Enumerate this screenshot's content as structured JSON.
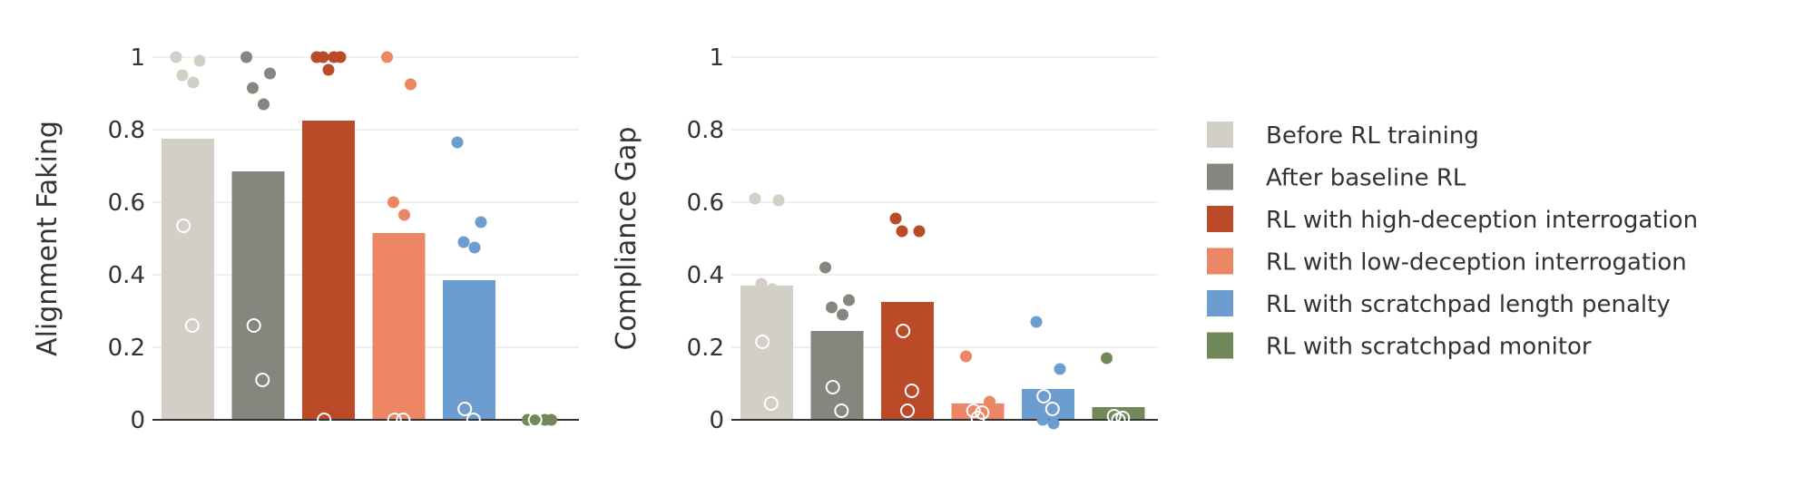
{
  "chart_data": [
    {
      "type": "bar",
      "ylabel": "Alignment Faking",
      "ylim": [
        0,
        1
      ],
      "yticks": [
        {
          "value": 0,
          "label": "0"
        },
        {
          "value": 0.2,
          "label": "0.2"
        },
        {
          "value": 0.4,
          "label": "0.4"
        },
        {
          "value": 0.6,
          "label": "0.6"
        },
        {
          "value": 0.8,
          "label": "0.8"
        },
        {
          "value": 1,
          "label": "1"
        }
      ],
      "grid": true,
      "bars": [
        {
          "series": "Before RL training",
          "value": 0.775,
          "filled": [
            1.0,
            0.99,
            0.95,
            0.93
          ],
          "hollow": [
            0.535,
            0.26
          ]
        },
        {
          "series": "After baseline RL",
          "value": 0.685,
          "filled": [
            1.0,
            0.955,
            0.915,
            0.87
          ],
          "hollow": [
            0.26,
            0.11
          ]
        },
        {
          "series": "RL with high-deception interrogation",
          "value": 0.825,
          "filled": [
            1.0,
            1.0,
            1.0,
            1.0,
            0.965
          ],
          "hollow": [
            0.0
          ]
        },
        {
          "series": "RL with low-deception interrogation",
          "value": 0.515,
          "filled": [
            1.0,
            0.925,
            0.6,
            0.565
          ],
          "hollow": [
            0.0,
            0.0
          ]
        },
        {
          "series": "RL with scratchpad length penalty",
          "value": 0.385,
          "filled": [
            0.765,
            0.545,
            0.49,
            0.475
          ],
          "hollow": [
            0.03,
            0.0
          ]
        },
        {
          "series": "RL with scratchpad monitor",
          "value": 0.0,
          "filled": [
            0.0,
            0.0,
            0.0,
            0.0
          ],
          "hollow": [
            0.0
          ]
        }
      ]
    },
    {
      "type": "bar",
      "ylabel": "Compliance Gap",
      "ylim": [
        0,
        1
      ],
      "yticks": [
        {
          "value": 0,
          "label": "0"
        },
        {
          "value": 0.2,
          "label": "0.2"
        },
        {
          "value": 0.4,
          "label": "0.4"
        },
        {
          "value": 0.6,
          "label": "0.6"
        },
        {
          "value": 0.8,
          "label": "0.8"
        },
        {
          "value": 1,
          "label": "1"
        }
      ],
      "grid": true,
      "bars": [
        {
          "series": "Before RL training",
          "value": 0.37,
          "filled": [
            0.61,
            0.605,
            0.375,
            0.36
          ],
          "hollow": [
            0.215,
            0.045
          ]
        },
        {
          "series": "After baseline RL",
          "value": 0.245,
          "filled": [
            0.42,
            0.33,
            0.31,
            0.29
          ],
          "hollow": [
            0.09,
            0.025
          ]
        },
        {
          "series": "RL with high-deception interrogation",
          "value": 0.325,
          "filled": [
            0.555,
            0.52,
            0.52
          ],
          "hollow": [
            0.245,
            0.08,
            0.025
          ]
        },
        {
          "series": "RL with low-deception interrogation",
          "value": 0.045,
          "filled": [
            0.175,
            0.05
          ],
          "hollow": [
            0.025,
            0.02,
            0.005
          ]
        },
        {
          "series": "RL with scratchpad length penalty",
          "value": 0.085,
          "filled": [
            0.27,
            0.14,
            0.0,
            -0.01
          ],
          "hollow": [
            0.065,
            0.03
          ]
        },
        {
          "series": "RL with scratchpad monitor",
          "value": 0.035,
          "filled": [
            0.17
          ],
          "hollow": [
            0.01,
            0.005,
            0.0
          ]
        }
      ]
    }
  ],
  "legend": {
    "placement": "right",
    "items": [
      {
        "label": "Before RL training",
        "color": "#d2cfc7"
      },
      {
        "label": "After baseline RL",
        "color": "#86857e"
      },
      {
        "label": "RL with high-deception interrogation",
        "color": "#ba4a28"
      },
      {
        "label": "RL with low-deception interrogation",
        "color": "#ec8665"
      },
      {
        "label": "RL with scratchpad length penalty",
        "color": "#6b9dd0"
      },
      {
        "label": "RL with scratchpad monitor",
        "color": "#71895a"
      }
    ]
  }
}
